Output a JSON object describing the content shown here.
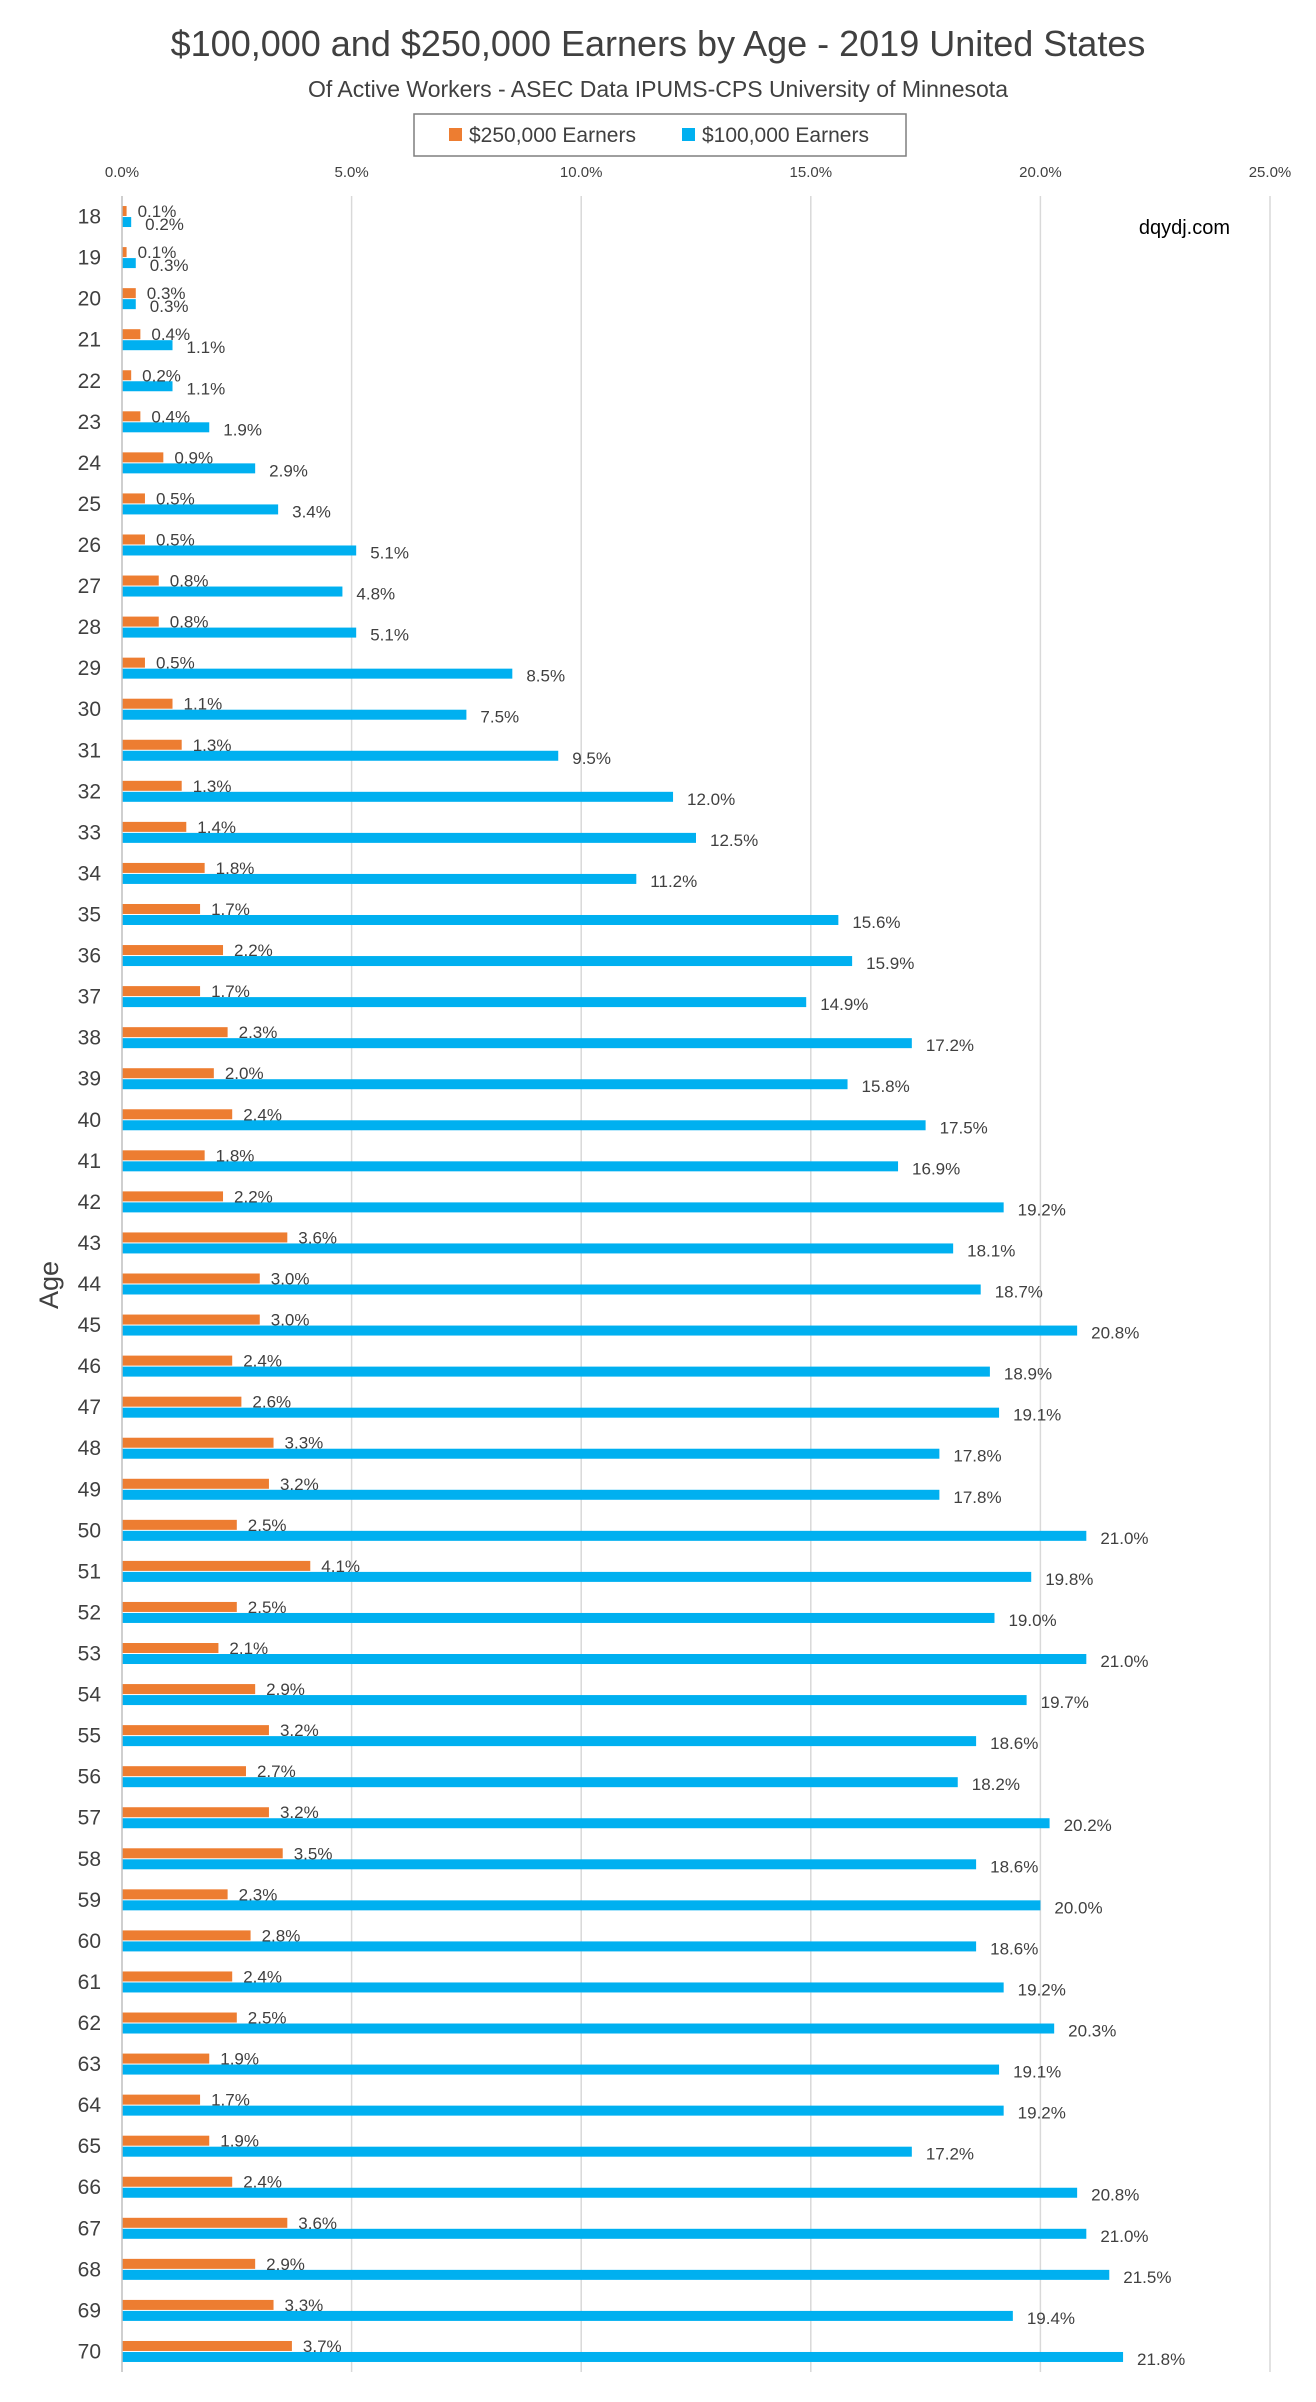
{
  "chart_data": {
    "type": "bar",
    "orientation": "horizontal",
    "title": "$100,000 and $250,000 Earners by Age - 2019 United States",
    "subtitle": "Of Active Workers - ASEC Data IPUMS-CPS University of Minnesota",
    "xlabel": "",
    "ylabel": "Age",
    "xlim": [
      0,
      25
    ],
    "x_ticks": [
      "0.0%",
      "5.0%",
      "10.0%",
      "15.0%",
      "20.0%",
      "25.0%"
    ],
    "x_tick_values": [
      0,
      5,
      10,
      15,
      20,
      25
    ],
    "grid": true,
    "legend_position": "top",
    "watermark": "dqydj.com",
    "categories": [
      "18",
      "19",
      "20",
      "21",
      "22",
      "23",
      "24",
      "25",
      "26",
      "27",
      "28",
      "29",
      "30",
      "31",
      "32",
      "33",
      "34",
      "35",
      "36",
      "37",
      "38",
      "39",
      "40",
      "41",
      "42",
      "43",
      "44",
      "45",
      "46",
      "47",
      "48",
      "49",
      "50",
      "51",
      "52",
      "53",
      "54",
      "55",
      "56",
      "57",
      "58",
      "59",
      "60",
      "61",
      "62",
      "63",
      "64",
      "65",
      "66",
      "67",
      "68",
      "69",
      "70"
    ],
    "series": [
      {
        "name": "$250,000 Earners",
        "color": "#ED7D31",
        "values": [
          0.1,
          0.1,
          0.3,
          0.4,
          0.2,
          0.4,
          0.9,
          0.5,
          0.5,
          0.8,
          0.8,
          0.5,
          1.1,
          1.3,
          1.3,
          1.4,
          1.8,
          1.7,
          2.2,
          1.7,
          2.3,
          2.0,
          2.4,
          1.8,
          2.2,
          3.6,
          3.0,
          3.0,
          2.4,
          2.6,
          3.3,
          3.2,
          2.5,
          4.1,
          2.5,
          2.1,
          2.9,
          3.2,
          2.7,
          3.2,
          3.5,
          2.3,
          2.8,
          2.4,
          2.5,
          1.9,
          1.7,
          1.9,
          2.4,
          3.6,
          2.9,
          3.3,
          3.7
        ],
        "labels": [
          "0.1%",
          "0.1%",
          "0.3%",
          "0.4%",
          "0.2%",
          "0.4%",
          "0.9%",
          "0.5%",
          "0.5%",
          "0.8%",
          "0.8%",
          "0.5%",
          "1.1%",
          "1.3%",
          "1.3%",
          "1.4%",
          "1.8%",
          "1.7%",
          "2.2%",
          "1.7%",
          "2.3%",
          "2.0%",
          "2.4%",
          "1.8%",
          "2.2%",
          "3.6%",
          "3.0%",
          "3.0%",
          "2.4%",
          "2.6%",
          "3.3%",
          "3.2%",
          "2.5%",
          "4.1%",
          "2.5%",
          "2.1%",
          "2.9%",
          "3.2%",
          "2.7%",
          "3.2%",
          "3.5%",
          "2.3%",
          "2.8%",
          "2.4%",
          "2.5%",
          "1.9%",
          "1.7%",
          "1.9%",
          "2.4%",
          "3.6%",
          "2.9%",
          "3.3%",
          "3.7%"
        ]
      },
      {
        "name": "$100,000 Earners",
        "color": "#00B0F0",
        "values": [
          0.2,
          0.3,
          0.3,
          1.1,
          1.1,
          1.9,
          2.9,
          3.4,
          5.1,
          4.8,
          5.1,
          8.5,
          7.5,
          9.5,
          12.0,
          12.5,
          11.2,
          15.6,
          15.9,
          14.9,
          17.2,
          15.8,
          17.5,
          16.9,
          19.2,
          18.1,
          18.7,
          20.8,
          18.9,
          19.1,
          17.8,
          17.8,
          21.0,
          19.8,
          19.0,
          21.0,
          19.7,
          18.6,
          18.2,
          20.2,
          18.6,
          20.0,
          18.6,
          19.2,
          20.3,
          19.1,
          19.2,
          17.2,
          20.8,
          21.0,
          21.5,
          19.4,
          21.8
        ],
        "labels": [
          "0.2%",
          "0.3%",
          "0.3%",
          "1.1%",
          "1.1%",
          "1.9%",
          "2.9%",
          "3.4%",
          "5.1%",
          "4.8%",
          "5.1%",
          "8.5%",
          "7.5%",
          "9.5%",
          "12.0%",
          "12.5%",
          "11.2%",
          "15.6%",
          "15.9%",
          "14.9%",
          "17.2%",
          "15.8%",
          "17.5%",
          "16.9%",
          "19.2%",
          "18.1%",
          "18.7%",
          "20.8%",
          "18.9%",
          "19.1%",
          "17.8%",
          "17.8%",
          "21.0%",
          "19.8%",
          "19.0%",
          "21.0%",
          "19.7%",
          "18.6%",
          "18.2%",
          "20.2%",
          "18.6%",
          "20.0%",
          "18.6%",
          "19.2%",
          "20.3%",
          "19.1%",
          "19.2%",
          "17.2%",
          "20.8%",
          "21.0%",
          "21.5%",
          "19.4%",
          "21.8%"
        ]
      }
    ]
  }
}
